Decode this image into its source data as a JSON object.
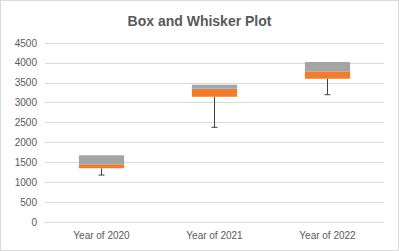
{
  "chart_data": {
    "type": "boxplot",
    "title": "Box and Whisker Plot",
    "categories": [
      "Year of 2020",
      "Year of 2021",
      "Year of 2022"
    ],
    "min": [
      1180,
      2380,
      3200
    ],
    "q1": [
      1350,
      3150,
      3600
    ],
    "median": [
      1450,
      3350,
      3780
    ],
    "q3": [
      1680,
      3450,
      4020
    ],
    "colors": [
      "#ed7d31",
      "#a5a5a5"
    ],
    "ylim": [
      0,
      4500
    ],
    "yticks": [
      0,
      500,
      1000,
      1500,
      2000,
      2500,
      3000,
      3500,
      4000,
      4500
    ],
    "grid": true
  }
}
